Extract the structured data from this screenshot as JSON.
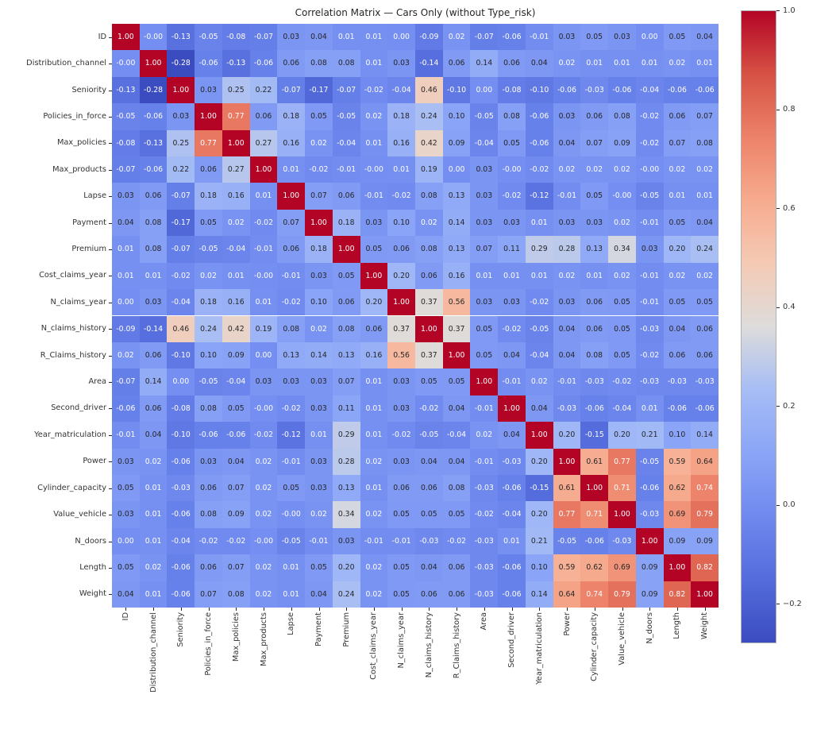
{
  "chart_data": {
    "type": "heatmap",
    "title": "Correlation Matrix — Cars Only (without Type_risk)",
    "labels": [
      "ID",
      "Distribution_channel",
      "Seniority",
      "Policies_in_force",
      "Max_policies",
      "Max_products",
      "Lapse",
      "Payment",
      "Premium",
      "Cost_claims_year",
      "N_claims_year",
      "N_claims_history",
      "R_Claims_history",
      "Area",
      "Second_driver",
      "Year_matriculation",
      "Power",
      "Cylinder_capacity",
      "Value_vehicle",
      "N_doors",
      "Length",
      "Weight"
    ],
    "values": [
      [
        "1.00",
        "-0.00",
        "-0.13",
        "-0.05",
        "-0.08",
        "-0.07",
        "0.03",
        "0.04",
        "0.01",
        "0.01",
        "0.00",
        "-0.09",
        "0.02",
        "-0.07",
        "-0.06",
        "-0.01",
        "0.03",
        "0.05",
        "0.03",
        "0.00",
        "0.05",
        "0.04"
      ],
      [
        "-0.00",
        "1.00",
        "-0.28",
        "-0.06",
        "-0.13",
        "-0.06",
        "0.06",
        "0.08",
        "0.08",
        "0.01",
        "0.03",
        "-0.14",
        "0.06",
        "0.14",
        "0.06",
        "0.04",
        "0.02",
        "0.01",
        "0.01",
        "0.01",
        "0.02",
        "0.01"
      ],
      [
        "-0.13",
        "-0.28",
        "1.00",
        "0.03",
        "0.25",
        "0.22",
        "-0.07",
        "-0.17",
        "-0.07",
        "-0.02",
        "-0.04",
        "0.46",
        "-0.10",
        "0.00",
        "-0.08",
        "-0.10",
        "-0.06",
        "-0.03",
        "-0.06",
        "-0.04",
        "-0.06",
        "-0.06"
      ],
      [
        "-0.05",
        "-0.06",
        "0.03",
        "1.00",
        "0.77",
        "0.06",
        "0.18",
        "0.05",
        "-0.05",
        "0.02",
        "0.18",
        "0.24",
        "0.10",
        "-0.05",
        "0.08",
        "-0.06",
        "0.03",
        "0.06",
        "0.08",
        "-0.02",
        "0.06",
        "0.07"
      ],
      [
        "-0.08",
        "-0.13",
        "0.25",
        "0.77",
        "1.00",
        "0.27",
        "0.16",
        "0.02",
        "-0.04",
        "0.01",
        "0.16",
        "0.42",
        "0.09",
        "-0.04",
        "0.05",
        "-0.06",
        "0.04",
        "0.07",
        "0.09",
        "-0.02",
        "0.07",
        "0.08"
      ],
      [
        "-0.07",
        "-0.06",
        "0.22",
        "0.06",
        "0.27",
        "1.00",
        "0.01",
        "-0.02",
        "-0.01",
        "-0.00",
        "0.01",
        "0.19",
        "0.00",
        "0.03",
        "-0.00",
        "-0.02",
        "0.02",
        "0.02",
        "0.02",
        "-0.00",
        "0.02",
        "0.02"
      ],
      [
        "0.03",
        "0.06",
        "-0.07",
        "0.18",
        "0.16",
        "0.01",
        "1.00",
        "0.07",
        "0.06",
        "-0.01",
        "-0.02",
        "0.08",
        "0.13",
        "0.03",
        "-0.02",
        "-0.12",
        "-0.01",
        "0.05",
        "-0.00",
        "-0.05",
        "0.01",
        "0.01"
      ],
      [
        "0.04",
        "0.08",
        "-0.17",
        "0.05",
        "0.02",
        "-0.02",
        "0.07",
        "1.00",
        "0.18",
        "0.03",
        "0.10",
        "0.02",
        "0.14",
        "0.03",
        "0.03",
        "0.01",
        "0.03",
        "0.03",
        "0.02",
        "-0.01",
        "0.05",
        "0.04"
      ],
      [
        "0.01",
        "0.08",
        "-0.07",
        "-0.05",
        "-0.04",
        "-0.01",
        "0.06",
        "0.18",
        "1.00",
        "0.05",
        "0.06",
        "0.08",
        "0.13",
        "0.07",
        "0.11",
        "0.29",
        "0.28",
        "0.13",
        "0.34",
        "0.03",
        "0.20",
        "0.24"
      ],
      [
        "0.01",
        "0.01",
        "-0.02",
        "0.02",
        "0.01",
        "-0.00",
        "-0.01",
        "0.03",
        "0.05",
        "1.00",
        "0.20",
        "0.06",
        "0.16",
        "0.01",
        "0.01",
        "0.01",
        "0.02",
        "0.01",
        "0.02",
        "-0.01",
        "0.02",
        "0.02"
      ],
      [
        "0.00",
        "0.03",
        "-0.04",
        "0.18",
        "0.16",
        "0.01",
        "-0.02",
        "0.10",
        "0.06",
        "0.20",
        "1.00",
        "0.37",
        "0.56",
        "0.03",
        "0.03",
        "-0.02",
        "0.03",
        "0.06",
        "0.05",
        "-0.01",
        "0.05",
        "0.05"
      ],
      [
        "-0.09",
        "-0.14",
        "0.46",
        "0.24",
        "0.42",
        "0.19",
        "0.08",
        "0.02",
        "0.08",
        "0.06",
        "0.37",
        "1.00",
        "0.37",
        "0.05",
        "-0.02",
        "-0.05",
        "0.04",
        "0.06",
        "0.05",
        "-0.03",
        "0.04",
        "0.06"
      ],
      [
        "0.02",
        "0.06",
        "-0.10",
        "0.10",
        "0.09",
        "0.00",
        "0.13",
        "0.14",
        "0.13",
        "0.16",
        "0.56",
        "0.37",
        "1.00",
        "0.05",
        "0.04",
        "-0.04",
        "0.04",
        "0.08",
        "0.05",
        "-0.02",
        "0.06",
        "0.06"
      ],
      [
        "-0.07",
        "0.14",
        "0.00",
        "-0.05",
        "-0.04",
        "0.03",
        "0.03",
        "0.03",
        "0.07",
        "0.01",
        "0.03",
        "0.05",
        "0.05",
        "1.00",
        "-0.01",
        "0.02",
        "-0.01",
        "-0.03",
        "-0.02",
        "-0.03",
        "-0.03",
        "-0.03"
      ],
      [
        "-0.06",
        "0.06",
        "-0.08",
        "0.08",
        "0.05",
        "-0.00",
        "-0.02",
        "0.03",
        "0.11",
        "0.01",
        "0.03",
        "-0.02",
        "0.04",
        "-0.01",
        "1.00",
        "0.04",
        "-0.03",
        "-0.06",
        "-0.04",
        "0.01",
        "-0.06",
        "-0.06"
      ],
      [
        "-0.01",
        "0.04",
        "-0.10",
        "-0.06",
        "-0.06",
        "-0.02",
        "-0.12",
        "0.01",
        "0.29",
        "0.01",
        "-0.02",
        "-0.05",
        "-0.04",
        "0.02",
        "0.04",
        "1.00",
        "0.20",
        "-0.15",
        "0.20",
        "0.21",
        "0.10",
        "0.14"
      ],
      [
        "0.03",
        "0.02",
        "-0.06",
        "0.03",
        "0.04",
        "0.02",
        "-0.01",
        "0.03",
        "0.28",
        "0.02",
        "0.03",
        "0.04",
        "0.04",
        "-0.01",
        "-0.03",
        "0.20",
        "1.00",
        "0.61",
        "0.77",
        "-0.05",
        "0.59",
        "0.64"
      ],
      [
        "0.05",
        "0.01",
        "-0.03",
        "0.06",
        "0.07",
        "0.02",
        "0.05",
        "0.03",
        "0.13",
        "0.01",
        "0.06",
        "0.06",
        "0.08",
        "-0.03",
        "-0.06",
        "-0.15",
        "0.61",
        "1.00",
        "0.71",
        "-0.06",
        "0.62",
        "0.74"
      ],
      [
        "0.03",
        "0.01",
        "-0.06",
        "0.08",
        "0.09",
        "0.02",
        "-0.00",
        "0.02",
        "0.34",
        "0.02",
        "0.05",
        "0.05",
        "0.05",
        "-0.02",
        "-0.04",
        "0.20",
        "0.77",
        "0.71",
        "1.00",
        "-0.03",
        "0.69",
        "0.79"
      ],
      [
        "0.00",
        "0.01",
        "-0.04",
        "-0.02",
        "-0.02",
        "-0.00",
        "-0.05",
        "-0.01",
        "0.03",
        "-0.01",
        "-0.01",
        "-0.03",
        "-0.02",
        "-0.03",
        "0.01",
        "0.21",
        "-0.05",
        "-0.06",
        "-0.03",
        "1.00",
        "0.09",
        "0.09"
      ],
      [
        "0.05",
        "0.02",
        "-0.06",
        "0.06",
        "0.07",
        "0.02",
        "0.01",
        "0.05",
        "0.20",
        "0.02",
        "0.05",
        "0.04",
        "0.06",
        "-0.03",
        "-0.06",
        "0.10",
        "0.59",
        "0.62",
        "0.69",
        "0.09",
        "1.00",
        "0.82"
      ],
      [
        "0.04",
        "0.01",
        "-0.06",
        "0.07",
        "0.08",
        "0.02",
        "0.01",
        "0.04",
        "0.24",
        "0.02",
        "0.05",
        "0.06",
        "0.06",
        "-0.03",
        "-0.06",
        "0.14",
        "0.64",
        "0.74",
        "0.79",
        "0.09",
        "0.82",
        "1.00"
      ]
    ],
    "vmin": -0.28,
    "vmax": 1.0,
    "colormap": "coolwarm",
    "colormap_stops": [
      "#3b4cc0",
      "#546cdc",
      "#6f89ef",
      "#8ba5f7",
      "#a6bdf5",
      "#dddcdb",
      "#f5cab5",
      "#f6ab8e",
      "#ec8269",
      "#d65244",
      "#b40426"
    ],
    "colorbar_ticks": [
      "1.0",
      "0.8",
      "0.6",
      "0.4",
      "0.2",
      "0.0",
      "−0.2"
    ],
    "annotation_colors": {
      "light_text": "#ffffff",
      "dark_text": "#262626"
    },
    "legend_position": "right",
    "grid": false
  }
}
